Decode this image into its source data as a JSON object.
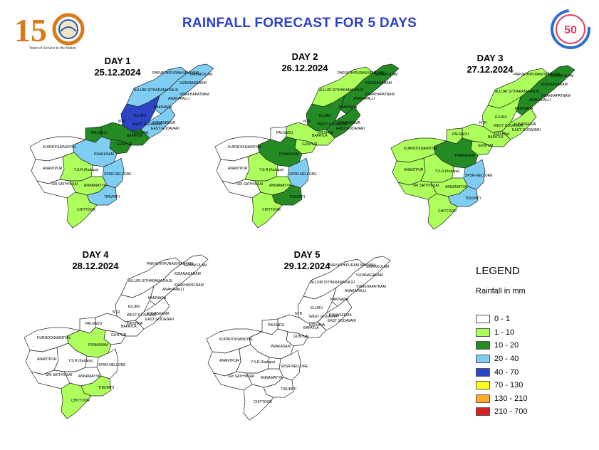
{
  "title": "RAINFALL FORECAST FOR 5 DAYS",
  "logos": {
    "left_number": "15",
    "left_caption": "Years of Service to the Nation",
    "right_number": "50"
  },
  "colors": {
    "title": "#2b3fd1",
    "c0": "#ffffff",
    "c1": "#adff5c",
    "c2": "#248b24",
    "c3": "#7fcdf2",
    "c4": "#2c45c7",
    "c5": "#ffff1f",
    "c6": "#ffaa2a",
    "c7": "#d81f26"
  },
  "days": [
    {
      "day": "DAY 1",
      "date": "25.12.2024",
      "regions": {
        "north": "c3",
        "coast_ne": "c3",
        "godavari_w": "c4",
        "godavari_e": "c3",
        "krishna": "c2",
        "guntur": "c2",
        "prakasam": "c3",
        "kurnool": "c0",
        "ysr": "c1",
        "anantpur": "c0",
        "annamayya": "c1",
        "nellore": "c3",
        "tirupati": "c3",
        "chittoor": "c1",
        "sathya": "c0",
        "palnadu": "c2"
      }
    },
    {
      "day": "DAY 2",
      "date": "26.12.2024",
      "regions": {
        "north": "c1",
        "coast_ne": "c2",
        "godavari_w": "c2",
        "godavari_e": "c2",
        "krishna": "c1",
        "guntur": "c1",
        "prakasam": "c2",
        "kurnool": "c0",
        "ysr": "c1",
        "anantpur": "c0",
        "annamayya": "c1",
        "nellore": "c3",
        "tirupati": "c2",
        "chittoor": "c1",
        "sathya": "c0",
        "palnadu": "c0"
      }
    },
    {
      "day": "DAY 3",
      "date": "27.12.2024",
      "regions": {
        "north": "c1",
        "coast_ne": "c2",
        "godavari_w": "c1",
        "godavari_e": "c1",
        "krishna": "c1",
        "guntur": "c1",
        "prakasam": "c2",
        "kurnool": "c1",
        "ysr": "c1",
        "anantpur": "c1",
        "annamayya": "c1",
        "nellore": "c3",
        "tirupati": "c3",
        "chittoor": "c1",
        "sathya": "c1",
        "palnadu": "c1"
      }
    },
    {
      "day": "DAY 4",
      "date": "28.12.2024",
      "regions": {
        "north": "c0",
        "coast_ne": "c0",
        "godavari_w": "c0",
        "godavari_e": "c0",
        "krishna": "c0",
        "guntur": "c0",
        "prakasam": "c1",
        "kurnool": "c0",
        "ysr": "c0",
        "anantpur": "c0",
        "annamayya": "c0",
        "nellore": "c0",
        "tirupati": "c1",
        "chittoor": "c1",
        "sathya": "c0",
        "palnadu": "c0"
      }
    },
    {
      "day": "DAY 5",
      "date": "29.12.2024",
      "regions": {
        "north": "c0",
        "coast_ne": "c0",
        "godavari_w": "c0",
        "godavari_e": "c0",
        "krishna": "c0",
        "guntur": "c0",
        "prakasam": "c0",
        "kurnool": "c0",
        "ysr": "c0",
        "anantpur": "c0",
        "annamayya": "c0",
        "nellore": "c0",
        "tirupati": "c0",
        "chittoor": "c0",
        "sathya": "c0",
        "palnadu": "c0"
      }
    }
  ],
  "district_labels": {
    "parvathipuram": "PARVATHIPURAM MANYAM",
    "srikakulam": "SRIKAKULAM",
    "vizianagaram": "VIZIANAGARAM",
    "alluri": "ALLURI SITHARAMA RAJU",
    "anakapalli": "ANAKAPALLI",
    "visakhapatnam": "VISAKHAPATNAM",
    "kakinada": "KAKINADA",
    "konaseema": "KONASEEMA",
    "eluru": "ELURU",
    "ntr": "NTR",
    "krishna": "KRISHNA",
    "guntur": "GUNTUR",
    "bapatla": "BAPATLA",
    "palnadu": "PALNADU",
    "prakasam": "PRAKASAM",
    "kurnool": "KURNOOL",
    "nandyal": "NANDYAL",
    "anantpur": "ANANTPUR",
    "ysr": "Y.S.R.(Kadapa)",
    "nellore": "SPSR-NELLORE",
    "sathya": "SRI SATHYASAI",
    "annamayya": "ANNAMAYYA",
    "tirupati": "TIRUPATI",
    "chittoor": "CHITTOOR",
    "east_godavari": "EAST GODAVARI",
    "west_godavari": "WEST GODAVARI"
  },
  "legend": {
    "title": "LEGEND",
    "unit": "Rainfall in mm",
    "items": [
      {
        "label": "0 - 1",
        "color": "#ffffff"
      },
      {
        "label": "1 - 10",
        "color": "#adff5c"
      },
      {
        "label": "10 - 20",
        "color": "#248b24"
      },
      {
        "label": "20 - 40",
        "color": "#7fcdf2"
      },
      {
        "label": "40 - 70",
        "color": "#2c45c7"
      },
      {
        "label": "70 - 130",
        "color": "#ffff1f"
      },
      {
        "label": "130 - 210",
        "color": "#ffaa2a"
      },
      {
        "label": "210 - 700",
        "color": "#d81f26"
      }
    ]
  }
}
